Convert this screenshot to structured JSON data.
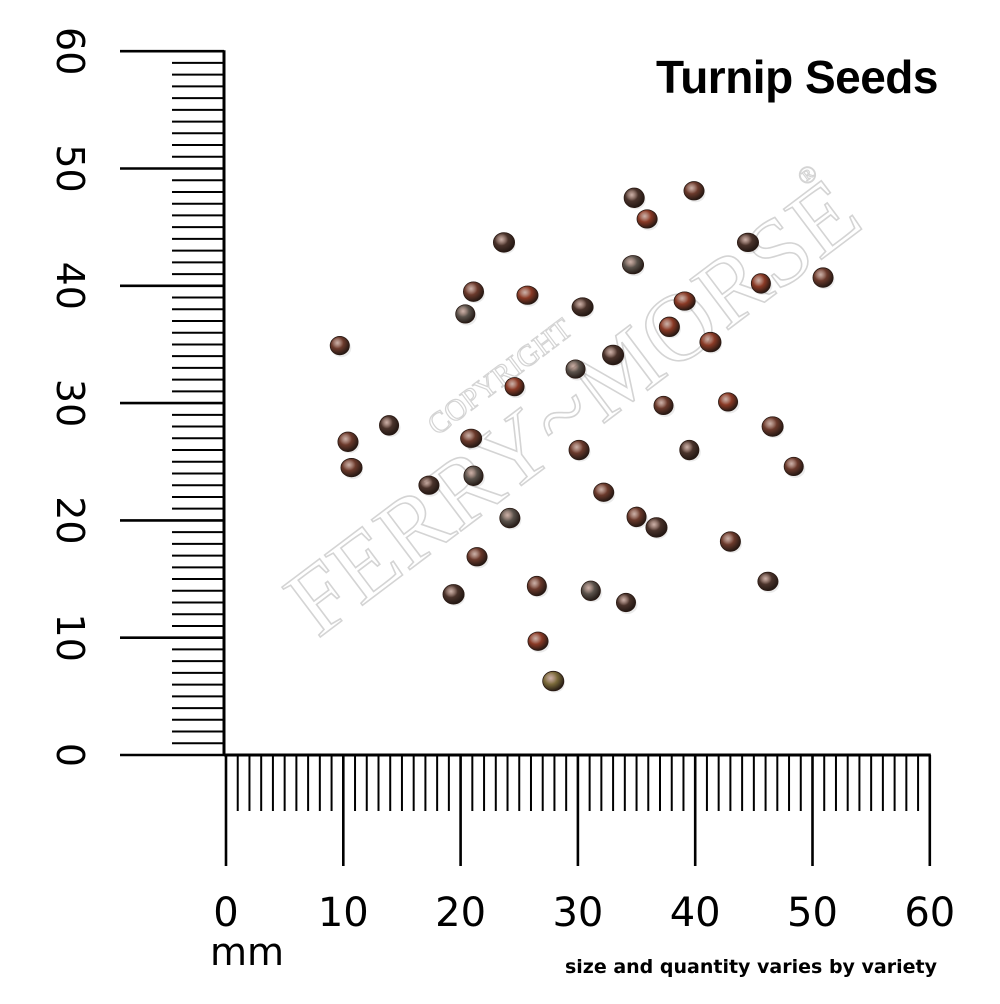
{
  "title": "Turnip Seeds",
  "unit_label": "mm",
  "footnote": "size and quantity varies by variety",
  "watermark": {
    "line1": "COPYRIGHT",
    "line2": "FERRY~MORSE",
    "registered": "®"
  },
  "ruler": {
    "min": 0,
    "max": 60,
    "major_step": 10,
    "tick_labels": [
      "0",
      "10",
      "20",
      "30",
      "40",
      "50",
      "60"
    ]
  },
  "colors": {
    "ink": "#000000",
    "background": "#ffffff",
    "seed_dark": "#4a332b",
    "seed_mid": "#6b3a2c",
    "seed_red": "#8a3a26",
    "seed_gray": "#5b534c",
    "seed_olive": "#7a6a3a"
  },
  "seeds": [
    {
      "x": 9.7,
      "y": 34.9,
      "tone": "mid"
    },
    {
      "x": 10.4,
      "y": 26.7,
      "tone": "mid"
    },
    {
      "x": 10.7,
      "y": 24.5,
      "tone": "mid"
    },
    {
      "x": 13.9,
      "y": 28.1,
      "tone": "dark"
    },
    {
      "x": 17.3,
      "y": 23.0,
      "tone": "dark"
    },
    {
      "x": 19.4,
      "y": 13.7,
      "tone": "dark"
    },
    {
      "x": 20.4,
      "y": 37.6,
      "tone": "gray"
    },
    {
      "x": 21.1,
      "y": 39.5,
      "tone": "mid"
    },
    {
      "x": 20.9,
      "y": 27.0,
      "tone": "mid"
    },
    {
      "x": 21.1,
      "y": 23.8,
      "tone": "gray"
    },
    {
      "x": 21.4,
      "y": 16.9,
      "tone": "mid"
    },
    {
      "x": 23.7,
      "y": 43.7,
      "tone": "dark"
    },
    {
      "x": 24.6,
      "y": 31.4,
      "tone": "red"
    },
    {
      "x": 24.2,
      "y": 20.2,
      "tone": "gray"
    },
    {
      "x": 25.7,
      "y": 39.2,
      "tone": "red"
    },
    {
      "x": 26.5,
      "y": 14.4,
      "tone": "mid"
    },
    {
      "x": 26.6,
      "y": 9.7,
      "tone": "red"
    },
    {
      "x": 27.9,
      "y": 6.3,
      "tone": "olive"
    },
    {
      "x": 29.8,
      "y": 32.9,
      "tone": "gray"
    },
    {
      "x": 30.1,
      "y": 26.0,
      "tone": "mid"
    },
    {
      "x": 30.4,
      "y": 38.2,
      "tone": "dark"
    },
    {
      "x": 31.1,
      "y": 14.0,
      "tone": "gray"
    },
    {
      "x": 32.2,
      "y": 22.4,
      "tone": "mid"
    },
    {
      "x": 33.0,
      "y": 34.1,
      "tone": "dark"
    },
    {
      "x": 34.1,
      "y": 13.0,
      "tone": "dark"
    },
    {
      "x": 34.8,
      "y": 47.5,
      "tone": "dark"
    },
    {
      "x": 34.7,
      "y": 41.8,
      "tone": "gray"
    },
    {
      "x": 35.0,
      "y": 20.3,
      "tone": "mid"
    },
    {
      "x": 35.9,
      "y": 45.7,
      "tone": "red"
    },
    {
      "x": 36.7,
      "y": 19.4,
      "tone": "dark"
    },
    {
      "x": 37.3,
      "y": 29.8,
      "tone": "mid"
    },
    {
      "x": 37.8,
      "y": 36.5,
      "tone": "red"
    },
    {
      "x": 39.1,
      "y": 38.7,
      "tone": "red"
    },
    {
      "x": 39.5,
      "y": 26.0,
      "tone": "dark"
    },
    {
      "x": 39.9,
      "y": 48.1,
      "tone": "mid"
    },
    {
      "x": 41.3,
      "y": 35.2,
      "tone": "red"
    },
    {
      "x": 42.8,
      "y": 30.1,
      "tone": "red"
    },
    {
      "x": 43.0,
      "y": 18.2,
      "tone": "mid"
    },
    {
      "x": 44.5,
      "y": 43.7,
      "tone": "dark"
    },
    {
      "x": 45.6,
      "y": 40.2,
      "tone": "red"
    },
    {
      "x": 46.2,
      "y": 14.8,
      "tone": "dark"
    },
    {
      "x": 46.6,
      "y": 28.0,
      "tone": "mid"
    },
    {
      "x": 48.4,
      "y": 24.6,
      "tone": "mid"
    },
    {
      "x": 50.9,
      "y": 40.7,
      "tone": "mid"
    }
  ]
}
